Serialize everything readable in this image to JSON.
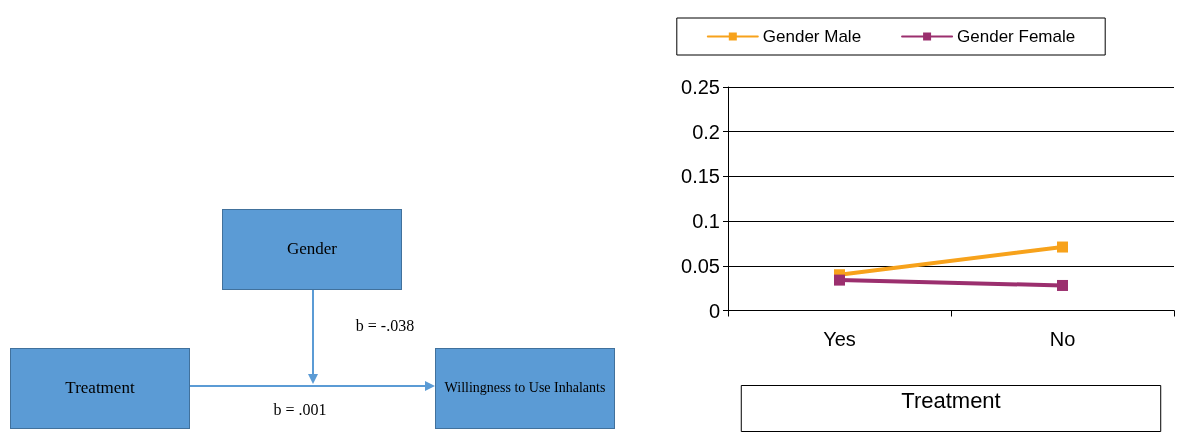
{
  "chart_data": [
    {
      "type": "other",
      "annotations": [
        "Gender",
        "Treatment",
        "Willingness to Use Inhalants",
        "b = -.038",
        "b = .001"
      ]
    },
    {
      "type": "line",
      "xlabel": "Treatment",
      "categories": [
        "Yes",
        "No"
      ],
      "series": [
        {
          "name": "Gender Male",
          "color": "#f7a21b",
          "values": [
            0.04,
            0.071
          ]
        },
        {
          "name": "Gender Female",
          "color": "#9b2f6e",
          "values": [
            0.034,
            0.028
          ]
        }
      ],
      "ylim": [
        0,
        0.25
      ],
      "yticks": [
        0,
        0.05,
        0.1,
        0.15,
        0.2,
        0.25
      ],
      "grid": "y",
      "legend": "top",
      "marker": "square",
      "line_style": "solid"
    }
  ]
}
